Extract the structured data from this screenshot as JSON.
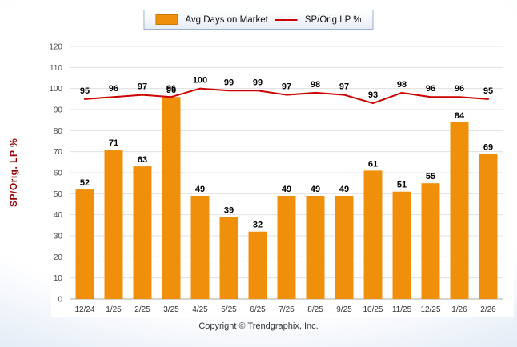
{
  "legend": {
    "avg_days_label": "Avg Days on Market",
    "sp_lp_label": "SP/Orig LP %"
  },
  "ylabel": "SP/Orig. LP %",
  "footer": "Copyright © Trendgraphix, Inc.",
  "colors": {
    "bar": "#F0900A",
    "line": "#CC0000",
    "grid": "#E0E0E0",
    "axis": "#AAAAAA",
    "ylabel": "#990000"
  },
  "chart_data": {
    "type": "bar",
    "categories": [
      "12/24",
      "1/25",
      "2/25",
      "3/25",
      "4/25",
      "5/25",
      "6/25",
      "7/25",
      "8/25",
      "9/25",
      "10/25",
      "11/25",
      "12/25",
      "1/26",
      "2/26"
    ],
    "series": [
      {
        "name": "Avg Days on Market",
        "type": "bar",
        "values": [
          52,
          71,
          63,
          96,
          49,
          39,
          32,
          49,
          49,
          49,
          61,
          51,
          55,
          84,
          69
        ]
      },
      {
        "name": "SP/Orig LP %",
        "type": "line",
        "values": [
          95,
          96,
          97,
          96,
          100,
          99,
          99,
          97,
          98,
          97,
          93,
          98,
          96,
          96,
          95
        ]
      }
    ],
    "ylim": [
      0,
      120
    ],
    "ytick_step": 10,
    "grid": true,
    "legend_position": "top",
    "title": "",
    "xlabel": "",
    "ylabel": "SP/Orig. LP %"
  }
}
